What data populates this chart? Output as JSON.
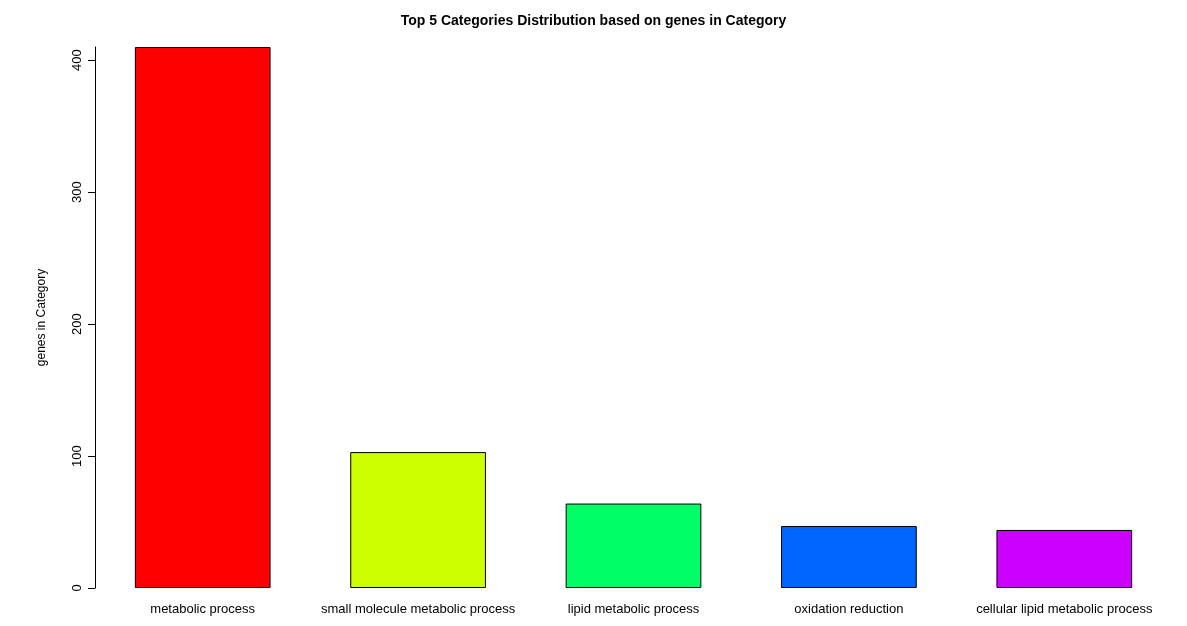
{
  "chart_data": {
    "type": "bar",
    "title": "Top 5 Categories Distribution based on genes in Category",
    "ylabel": "genes in Category",
    "categories": [
      "metabolic process",
      "small molecule metabolic process",
      "lipid metabolic process",
      "oxidation reduction",
      "cellular lipid metabolic process"
    ],
    "values": [
      410,
      103,
      64,
      47,
      44
    ],
    "colors": [
      "#ff0000",
      "#ccff00",
      "#00ff66",
      "#0066ff",
      "#cc00ff"
    ],
    "ylim": [
      0,
      410
    ],
    "yticks": [
      0,
      100,
      200,
      300,
      400
    ],
    "grid": false
  }
}
